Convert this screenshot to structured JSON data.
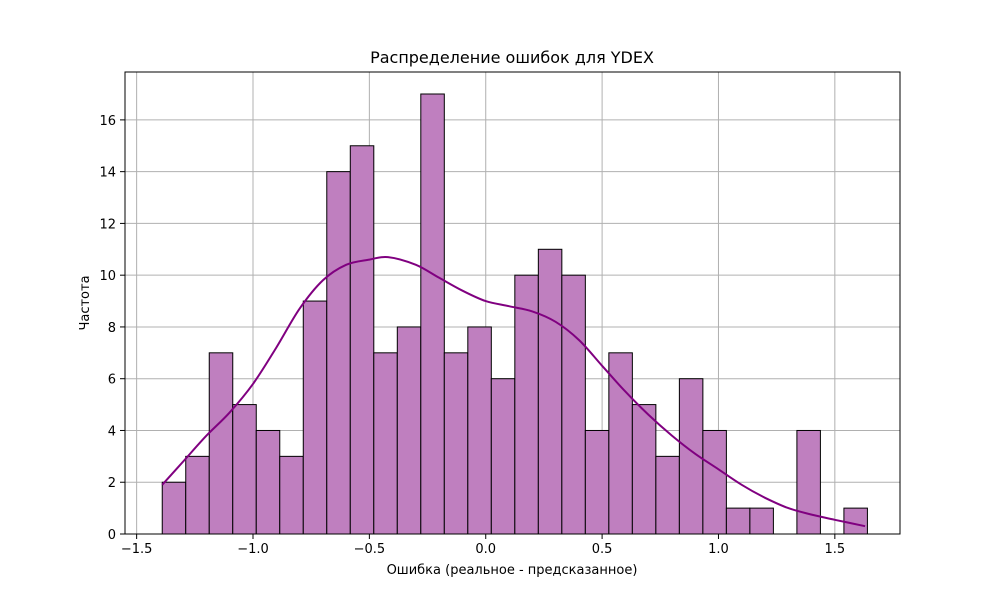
{
  "chart_data": {
    "type": "bar",
    "title": "Распределение ошибок для YDEX",
    "xlabel": "Ошибка (реальное - предсказанное)",
    "ylabel": "Частота",
    "xlim": [
      -1.55,
      1.78
    ],
    "ylim": [
      0,
      17.85
    ],
    "x_ticks": [
      {
        "value": -1.5,
        "label": "−1.5"
      },
      {
        "value": -1.0,
        "label": "−1.0"
      },
      {
        "value": -0.5,
        "label": "−0.5"
      },
      {
        "value": 0.0,
        "label": "0.0"
      },
      {
        "value": 0.5,
        "label": "0.5"
      },
      {
        "value": 1.0,
        "label": "1.0"
      },
      {
        "value": 1.5,
        "label": "1.5"
      }
    ],
    "y_ticks": [
      {
        "value": 0,
        "label": "0"
      },
      {
        "value": 2,
        "label": "2"
      },
      {
        "value": 4,
        "label": "4"
      },
      {
        "value": 6,
        "label": "6"
      },
      {
        "value": 8,
        "label": "8"
      },
      {
        "value": 10,
        "label": "10"
      },
      {
        "value": 12,
        "label": "12"
      },
      {
        "value": 14,
        "label": "14"
      },
      {
        "value": 16,
        "label": "16"
      }
    ],
    "grid": true,
    "bin_start": -1.39,
    "bin_width": 0.101,
    "values": [
      2,
      3,
      7,
      5,
      4,
      3,
      9,
      14,
      15,
      7,
      8,
      17,
      7,
      8,
      6,
      10,
      11,
      10,
      4,
      7,
      5,
      3,
      6,
      4,
      1,
      1,
      0,
      4,
      0,
      1
    ],
    "kde": {
      "x": [
        -1.39,
        -1.3,
        -1.2,
        -1.1,
        -1.0,
        -0.9,
        -0.8,
        -0.7,
        -0.6,
        -0.5,
        -0.42,
        -0.3,
        -0.2,
        -0.1,
        0.0,
        0.1,
        0.2,
        0.3,
        0.4,
        0.5,
        0.6,
        0.7,
        0.8,
        0.9,
        1.0,
        1.1,
        1.2,
        1.3,
        1.4,
        1.5,
        1.63
      ],
      "y": [
        1.9,
        2.8,
        3.8,
        4.7,
        5.8,
        7.2,
        8.7,
        9.8,
        10.4,
        10.6,
        10.7,
        10.4,
        9.9,
        9.4,
        9.0,
        8.8,
        8.6,
        8.2,
        7.5,
        6.5,
        5.5,
        4.6,
        3.8,
        3.1,
        2.5,
        1.9,
        1.4,
        1.0,
        0.75,
        0.55,
        0.3
      ]
    },
    "colors": {
      "bar_fill": "#bf7fbf",
      "bar_edge": "#000000",
      "kde_line": "#800080",
      "grid": "#b0b0b0"
    }
  }
}
